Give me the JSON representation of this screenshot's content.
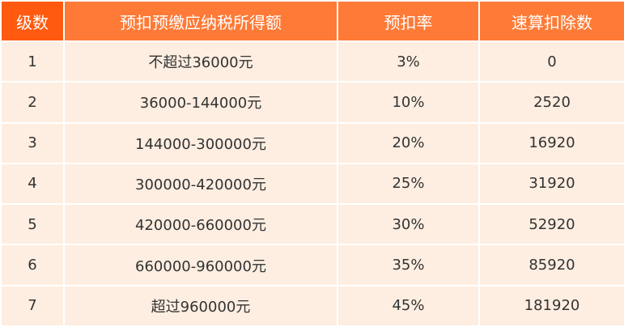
{
  "colors": {
    "header": "#ff7a36",
    "header_first": "#ff5a10",
    "body": "#fdeee1",
    "text": "#333333"
  },
  "headers": [
    "级数",
    "预扣预缴应纳税所得额",
    "预扣率",
    "速算扣除数"
  ],
  "rows": [
    [
      "1",
      "不超过36000元",
      "3%",
      "0"
    ],
    [
      "2",
      "36000-144000元",
      "10%",
      "2520"
    ],
    [
      "3",
      "144000-300000元",
      "20%",
      "16920"
    ],
    [
      "4",
      "300000-420000元",
      "25%",
      "31920"
    ],
    [
      "5",
      "420000-660000元",
      "30%",
      "52920"
    ],
    [
      "6",
      "660000-960000元",
      "35%",
      "85920"
    ],
    [
      "7",
      "超过960000元",
      "45%",
      "181920"
    ]
  ]
}
